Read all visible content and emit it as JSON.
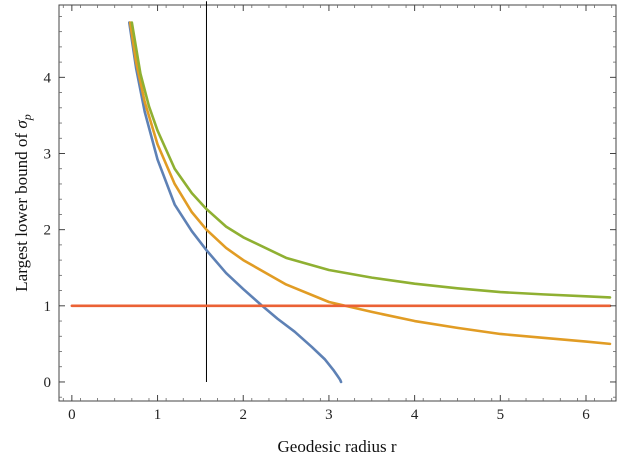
{
  "chart_data": {
    "type": "line",
    "title": "",
    "xlabel": "Geodesic radius r",
    "ylabel": "Largest lower bound of σ_p",
    "ylabel_parts": {
      "text": "Largest lower bound of ",
      "symbol": "σ",
      "subscript": "p"
    },
    "xlim": [
      -0.15,
      6.35
    ],
    "ylim": [
      -0.25,
      4.95
    ],
    "xticks": [
      0,
      1,
      2,
      3,
      4,
      5,
      6
    ],
    "yticks": [
      0,
      1,
      2,
      3,
      4
    ],
    "grid": false,
    "vertical_line": {
      "x": 1.571,
      "y_range": [
        0,
        5
      ],
      "color": "#000000"
    },
    "series": [
      {
        "color": "#5E81B5",
        "x": [
          0.67,
          0.75,
          0.85,
          1.0,
          1.2,
          1.4,
          1.571,
          1.8,
          2.0,
          2.2,
          2.4,
          2.6,
          2.8,
          2.95,
          3.05,
          3.1,
          3.13,
          3.1416
        ],
        "y": [
          4.72,
          4.12,
          3.55,
          2.92,
          2.33,
          1.98,
          1.73,
          1.43,
          1.22,
          1.02,
          0.83,
          0.66,
          0.46,
          0.3,
          0.16,
          0.08,
          0.03,
          0.0
        ]
      },
      {
        "color": "#E19C24",
        "x": [
          0.68,
          0.75,
          0.85,
          1.0,
          1.2,
          1.4,
          1.571,
          1.8,
          2.0,
          2.5,
          3.0,
          3.5,
          4.0,
          4.5,
          5.0,
          5.5,
          6.0,
          6.28
        ],
        "y": [
          4.72,
          4.2,
          3.68,
          3.12,
          2.6,
          2.23,
          2.0,
          1.76,
          1.6,
          1.28,
          1.05,
          0.92,
          0.8,
          0.71,
          0.63,
          0.58,
          0.53,
          0.5
        ]
      },
      {
        "color": "#8FB032",
        "x": [
          0.7,
          0.8,
          0.9,
          1.0,
          1.2,
          1.4,
          1.571,
          1.8,
          2.0,
          2.5,
          3.0,
          3.5,
          4.0,
          4.5,
          5.0,
          5.5,
          6.0,
          6.28
        ],
        "y": [
          4.72,
          4.05,
          3.62,
          3.3,
          2.8,
          2.48,
          2.27,
          2.04,
          1.9,
          1.63,
          1.47,
          1.37,
          1.29,
          1.23,
          1.18,
          1.15,
          1.125,
          1.11
        ]
      },
      {
        "color": "#EB6235",
        "x": [
          0,
          6.28
        ],
        "y": [
          1.0,
          1.0
        ]
      }
    ]
  }
}
